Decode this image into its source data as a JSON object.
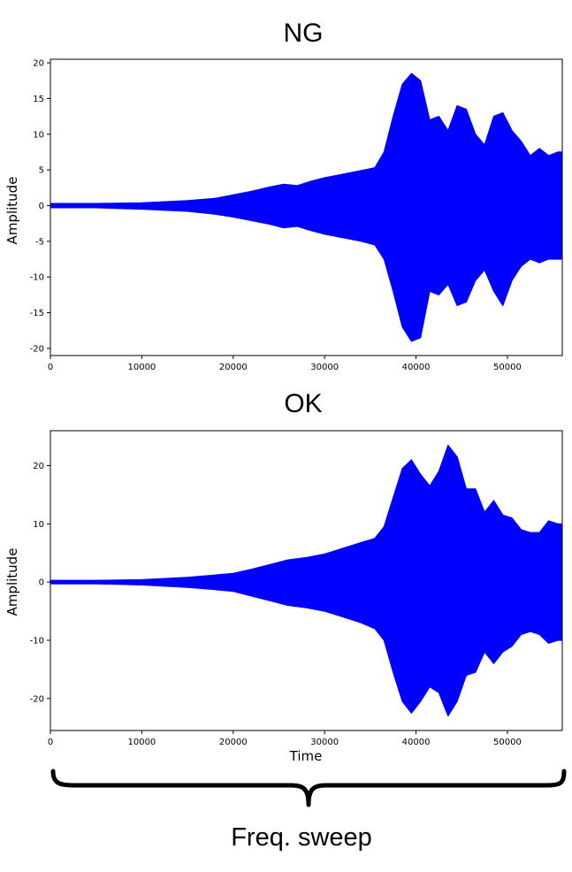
{
  "chart_data": [
    {
      "type": "area",
      "title": "NG",
      "xlabel": "",
      "ylabel": "Amplitude",
      "xlim": [
        0,
        56000
      ],
      "ylim": [
        -21,
        20.5
      ],
      "xticks": [
        0,
        10000,
        20000,
        30000,
        40000,
        50000
      ],
      "yticks": [
        -20,
        -15,
        -10,
        -5,
        0,
        5,
        10,
        15,
        20
      ],
      "grid": false,
      "color": "#0000ff",
      "series": [
        {
          "x": [
            0,
            5000,
            10000,
            15000,
            18000,
            20000,
            22000,
            24000,
            25500,
            27000,
            28500,
            30000,
            32000,
            34000,
            35500,
            36500,
            37500,
            38500,
            39500,
            40500,
            41500,
            42500,
            43500,
            44500,
            45500,
            46500,
            47500,
            48500,
            49500,
            50500,
            51500,
            52500,
            53500,
            54500,
            55500,
            56000
          ],
          "upper": [
            0.3,
            0.3,
            0.4,
            0.7,
            1.0,
            1.5,
            2.0,
            2.6,
            3.0,
            2.8,
            3.4,
            3.9,
            4.4,
            4.9,
            5.3,
            7.5,
            12.5,
            17.0,
            18.5,
            17.5,
            12.0,
            12.5,
            10.5,
            14.0,
            13.5,
            10.0,
            8.5,
            12.5,
            13.0,
            10.5,
            9.0,
            7.0,
            8.0,
            7.0,
            7.5,
            7.5
          ],
          "lower": [
            -0.3,
            -0.3,
            -0.5,
            -0.8,
            -1.2,
            -1.6,
            -2.1,
            -2.6,
            -3.1,
            -2.9,
            -3.5,
            -4.0,
            -4.5,
            -5.0,
            -5.5,
            -7.5,
            -12.0,
            -17.0,
            -19.0,
            -18.5,
            -12.0,
            -12.5,
            -11.0,
            -14.0,
            -13.5,
            -10.5,
            -9.0,
            -12.0,
            -14.0,
            -10.5,
            -8.5,
            -7.5,
            -8.0,
            -7.5,
            -7.5,
            -7.5
          ]
        }
      ]
    },
    {
      "type": "area",
      "title": "OK",
      "xlabel": "Time",
      "ylabel": "Amplitude",
      "xlim": [
        0,
        56000
      ],
      "ylim": [
        -25.5,
        26
      ],
      "xticks": [
        0,
        10000,
        20000,
        30000,
        40000,
        50000
      ],
      "yticks": [
        -20,
        -10,
        0,
        10,
        20
      ],
      "grid": false,
      "color": "#0000ff",
      "series": [
        {
          "x": [
            0,
            5000,
            10000,
            15000,
            18000,
            20000,
            22000,
            24000,
            26000,
            28000,
            30000,
            32000,
            34000,
            35500,
            36500,
            37500,
            38500,
            39500,
            40500,
            41500,
            42500,
            43500,
            44500,
            45500,
            46500,
            47500,
            48500,
            49500,
            50500,
            51500,
            52500,
            53500,
            54500,
            55500,
            56000
          ],
          "upper": [
            0.3,
            0.3,
            0.4,
            0.8,
            1.2,
            1.5,
            2.2,
            3.0,
            3.8,
            4.2,
            4.8,
            5.8,
            6.8,
            7.5,
            9.5,
            14.5,
            19.5,
            21.0,
            18.5,
            16.5,
            19.0,
            23.5,
            21.5,
            16.0,
            16.0,
            12.0,
            14.0,
            11.5,
            11.0,
            9.0,
            8.5,
            8.5,
            10.5,
            10.0,
            10.0
          ],
          "lower": [
            -0.3,
            -0.3,
            -0.5,
            -0.9,
            -1.3,
            -1.6,
            -2.4,
            -3.2,
            -4.0,
            -4.4,
            -5.0,
            -6.0,
            -7.0,
            -8.0,
            -10.0,
            -15.5,
            -20.5,
            -22.5,
            -20.5,
            -18.0,
            -19.0,
            -23.0,
            -20.5,
            -16.0,
            -15.5,
            -12.0,
            -14.0,
            -12.0,
            -11.0,
            -9.0,
            -8.5,
            -9.0,
            -10.5,
            -10.0,
            -10.0
          ]
        }
      ]
    }
  ],
  "annotation": {
    "text": "Freq. sweep"
  }
}
